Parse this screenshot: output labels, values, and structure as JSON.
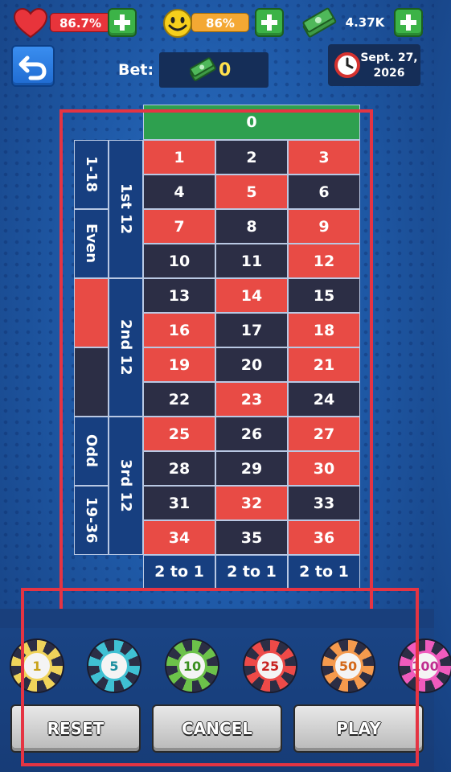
{
  "stats": {
    "health": "86.7%",
    "happiness": "86%",
    "money": "4.37K"
  },
  "bet": {
    "label": "Bet:",
    "value": "0"
  },
  "date": {
    "line1": "Sept. 27,",
    "line2": "2026"
  },
  "table": {
    "zero": "0",
    "numbers": [
      {
        "n": "1",
        "c": "red"
      },
      {
        "n": "2",
        "c": "black"
      },
      {
        "n": "3",
        "c": "red"
      },
      {
        "n": "4",
        "c": "black"
      },
      {
        "n": "5",
        "c": "red"
      },
      {
        "n": "6",
        "c": "black"
      },
      {
        "n": "7",
        "c": "red"
      },
      {
        "n": "8",
        "c": "black"
      },
      {
        "n": "9",
        "c": "red"
      },
      {
        "n": "10",
        "c": "black"
      },
      {
        "n": "11",
        "c": "black"
      },
      {
        "n": "12",
        "c": "red"
      },
      {
        "n": "13",
        "c": "black"
      },
      {
        "n": "14",
        "c": "red"
      },
      {
        "n": "15",
        "c": "black"
      },
      {
        "n": "16",
        "c": "red"
      },
      {
        "n": "17",
        "c": "black"
      },
      {
        "n": "18",
        "c": "red"
      },
      {
        "n": "19",
        "c": "red"
      },
      {
        "n": "20",
        "c": "black"
      },
      {
        "n": "21",
        "c": "red"
      },
      {
        "n": "22",
        "c": "black"
      },
      {
        "n": "23",
        "c": "red"
      },
      {
        "n": "24",
        "c": "black"
      },
      {
        "n": "25",
        "c": "red"
      },
      {
        "n": "26",
        "c": "black"
      },
      {
        "n": "27",
        "c": "red"
      },
      {
        "n": "28",
        "c": "black"
      },
      {
        "n": "29",
        "c": "black"
      },
      {
        "n": "30",
        "c": "red"
      },
      {
        "n": "31",
        "c": "black"
      },
      {
        "n": "32",
        "c": "red"
      },
      {
        "n": "33",
        "c": "black"
      },
      {
        "n": "34",
        "c": "red"
      },
      {
        "n": "35",
        "c": "black"
      },
      {
        "n": "36",
        "c": "red"
      }
    ],
    "dozens": [
      "1st 12",
      "2nd 12",
      "3rd 12"
    ],
    "outside": [
      "1-18",
      "Even",
      "",
      "",
      "Odd",
      "19-36"
    ],
    "columns": [
      "2 to 1",
      "2 to 1",
      "2 to 1"
    ]
  },
  "chips": [
    {
      "value": "1",
      "color": "#f0d35a",
      "text": "#c9a21a"
    },
    {
      "value": "5",
      "color": "#3fc1d3",
      "text": "#1b8fa0"
    },
    {
      "value": "10",
      "color": "#6cc24a",
      "text": "#3a8f1f"
    },
    {
      "value": "25",
      "color": "#ee4a48",
      "text": "#c82220"
    },
    {
      "value": "50",
      "color": "#f59a4d",
      "text": "#d4691a"
    },
    {
      "value": "100",
      "color": "#f05bbd",
      "text": "#c02e90"
    }
  ],
  "buttons": {
    "reset": "RESET",
    "cancel": "CANCEL",
    "play": "PLAY"
  }
}
